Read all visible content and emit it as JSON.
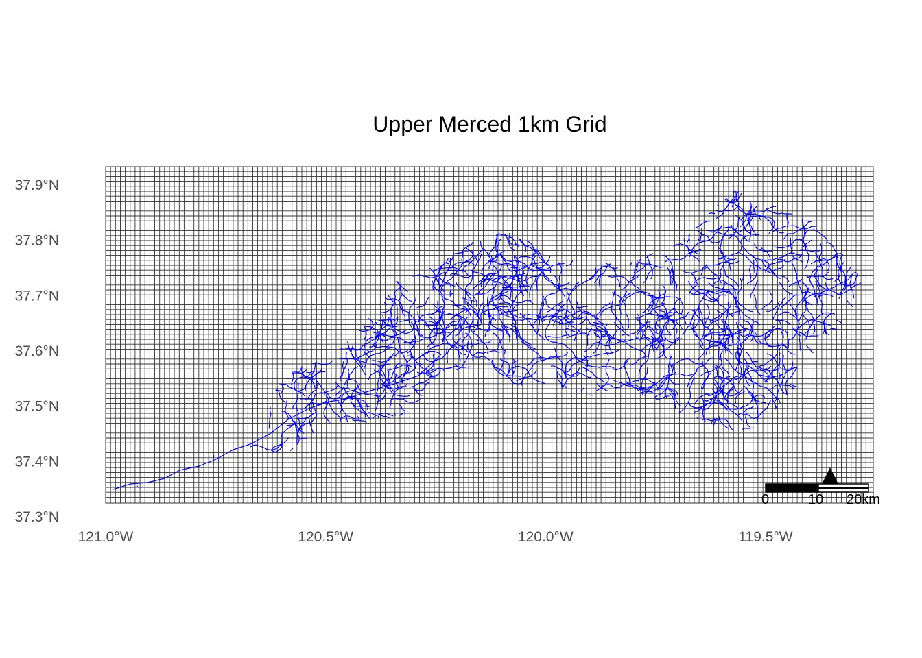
{
  "title": "Upper Merced 1km Grid",
  "map": {
    "lon_range": [
      -121.0,
      -119.25
    ],
    "lat_range": [
      37.32,
      37.92
    ],
    "x_ticks": [
      {
        "value": -121.0,
        "label": "121.0°W"
      },
      {
        "value": -120.5,
        "label": "120.5°W"
      },
      {
        "value": -120.0,
        "label": "120.0°W"
      },
      {
        "value": -119.5,
        "label": "119.5°W"
      }
    ],
    "y_ticks": [
      {
        "value": 37.9,
        "label": "37.9°N"
      },
      {
        "value": 37.8,
        "label": "37.8°N"
      },
      {
        "value": 37.7,
        "label": "37.7°N"
      },
      {
        "value": 37.6,
        "label": "37.6°N"
      },
      {
        "value": 37.5,
        "label": "37.5°N"
      },
      {
        "value": 37.4,
        "label": "37.4°N"
      },
      {
        "value": 37.3,
        "label": "37.3°N"
      }
    ],
    "grid_cell_km": 1,
    "grid_color": "#333333",
    "river_color": "#0000ff",
    "scale_bar": {
      "labels": [
        "0",
        "10",
        "20km"
      ]
    },
    "north_arrow": "north-arrow-icon"
  }
}
